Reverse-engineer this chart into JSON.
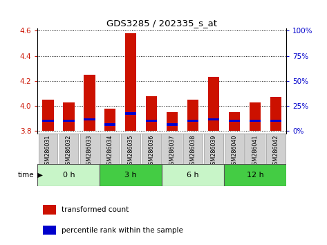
{
  "title": "GDS3285 / 202335_s_at",
  "samples": [
    "GSM286031",
    "GSM286032",
    "GSM286033",
    "GSM286034",
    "GSM286035",
    "GSM286036",
    "GSM286037",
    "GSM286038",
    "GSM286039",
    "GSM286040",
    "GSM286041",
    "GSM286042"
  ],
  "transformed_count": [
    4.05,
    4.03,
    4.25,
    3.98,
    4.58,
    4.08,
    3.95,
    4.05,
    4.23,
    3.95,
    4.03,
    4.07
  ],
  "blue_position": [
    3.872,
    3.872,
    3.882,
    3.84,
    3.928,
    3.872,
    3.84,
    3.872,
    3.882,
    3.872,
    3.872,
    3.872
  ],
  "blue_height": [
    0.02,
    0.02,
    0.02,
    0.02,
    0.02,
    0.02,
    0.02,
    0.02,
    0.02,
    0.02,
    0.02,
    0.02
  ],
  "bar_base": 3.8,
  "ylim": [
    3.78,
    4.62
  ],
  "y_left_ticks": [
    3.8,
    4.0,
    4.2,
    4.4,
    4.6
  ],
  "y_right_ticks": [
    0,
    25,
    50,
    75,
    100
  ],
  "time_groups": [
    {
      "label": "0 h",
      "start": 0,
      "end": 3,
      "color": "#c8f5c8"
    },
    {
      "label": "3 h",
      "start": 3,
      "end": 6,
      "color": "#44cc44"
    },
    {
      "label": "6 h",
      "start": 6,
      "end": 9,
      "color": "#c8f5c8"
    },
    {
      "label": "12 h",
      "start": 9,
      "end": 12,
      "color": "#44cc44"
    }
  ],
  "red_color": "#cc1100",
  "blue_color": "#0000cc",
  "bar_width": 0.55,
  "sample_box_color": "#d0d0d0",
  "legend_labels": [
    "transformed count",
    "percentile rank within the sample"
  ]
}
